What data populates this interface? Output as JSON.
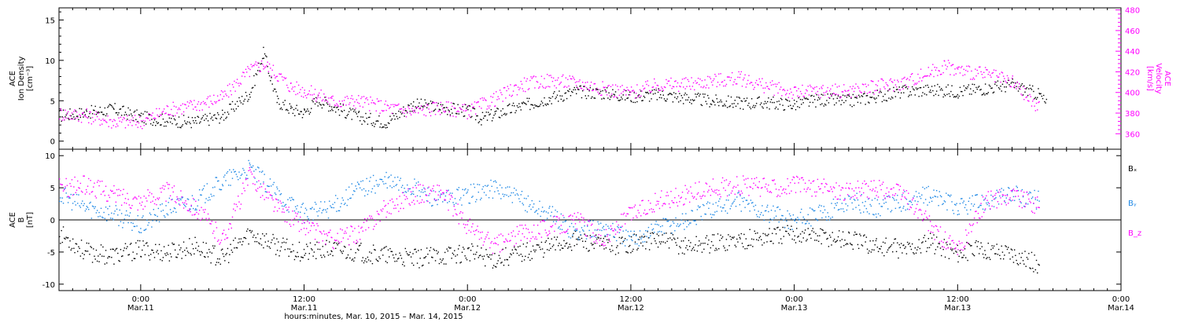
{
  "chart_data": [
    {
      "type": "scatter",
      "panel": "top",
      "ylabel": [
        "ACE",
        "Ion Density",
        "[cm⁻³]"
      ],
      "ylabel_right": [
        "ACE",
        "Velocity",
        "[km/s]"
      ],
      "ylim": [
        -1,
        16.5
      ],
      "yticks": [
        0,
        5,
        10,
        15
      ],
      "ylim_right": [
        345,
        482
      ],
      "yticks_right": [
        360,
        380,
        400,
        420,
        440,
        460,
        480
      ],
      "grid": false,
      "series": [
        {
          "axis": "left",
          "color": "#000000",
          "points": [
            [
              -6,
              3.2
            ],
            [
              -4,
              3.6
            ],
            [
              -2,
              4.0
            ],
            [
              0,
              3.0
            ],
            [
              2,
              2.6
            ],
            [
              4,
              2.4
            ],
            [
              6,
              3.2
            ],
            [
              8,
              6.0
            ],
            [
              9,
              11.0
            ],
            [
              10,
              5.0
            ],
            [
              11,
              4.0
            ],
            [
              12,
              3.6
            ],
            [
              13,
              5.2
            ],
            [
              14,
              4.4
            ],
            [
              16,
              3.0
            ],
            [
              18,
              2.4
            ],
            [
              20,
              4.6
            ],
            [
              22,
              4.2
            ],
            [
              24,
              3.8
            ],
            [
              25,
              2.8
            ],
            [
              26,
              3.4
            ],
            [
              28,
              4.4
            ],
            [
              30,
              5.4
            ],
            [
              32,
              6.2
            ],
            [
              34,
              6.0
            ],
            [
              36,
              5.6
            ],
            [
              38,
              5.8
            ],
            [
              40,
              5.4
            ],
            [
              42,
              5.0
            ],
            [
              44,
              4.8
            ],
            [
              46,
              4.8
            ],
            [
              48,
              4.6
            ],
            [
              50,
              5.2
            ],
            [
              52,
              5.0
            ],
            [
              54,
              5.6
            ],
            [
              56,
              6.2
            ],
            [
              58,
              6.4
            ],
            [
              60,
              6.2
            ],
            [
              62,
              6.6
            ],
            [
              64,
              7.0
            ],
            [
              66,
              5.8
            ],
            [
              66.5,
              4.6
            ]
          ]
        },
        {
          "axis": "right",
          "color": "#ff00ff",
          "points": [
            [
              -6,
              380
            ],
            [
              -4,
              378
            ],
            [
              -2,
              372
            ],
            [
              0,
              372
            ],
            [
              2,
              384
            ],
            [
              4,
              388
            ],
            [
              6,
              396
            ],
            [
              8,
              422
            ],
            [
              9,
              428
            ],
            [
              10,
              418
            ],
            [
              11,
              406
            ],
            [
              12,
              402
            ],
            [
              13,
              398
            ],
            [
              14,
              392
            ],
            [
              16,
              392
            ],
            [
              18,
              386
            ],
            [
              20,
              382
            ],
            [
              22,
              386
            ],
            [
              24,
              382
            ],
            [
              26,
              394
            ],
            [
              28,
              408
            ],
            [
              30,
              412
            ],
            [
              32,
              410
            ],
            [
              34,
              404
            ],
            [
              36,
              400
            ],
            [
              38,
              408
            ],
            [
              40,
              408
            ],
            [
              42,
              412
            ],
            [
              44,
              414
            ],
            [
              46,
              406
            ],
            [
              48,
              400
            ],
            [
              50,
              402
            ],
            [
              52,
              402
            ],
            [
              54,
              406
            ],
            [
              56,
              410
            ],
            [
              58,
              420
            ],
            [
              59,
              426
            ],
            [
              60,
              422
            ],
            [
              62,
              418
            ],
            [
              64,
              410
            ],
            [
              66,
              384
            ]
          ]
        }
      ]
    },
    {
      "type": "scatter",
      "panel": "bottom",
      "ylabel": [
        "ACE",
        "B",
        "[nT]"
      ],
      "ylim": [
        -11,
        11
      ],
      "yticks": [
        -10,
        -5,
        0,
        5,
        10
      ],
      "zero_line": true,
      "grid": false,
      "legend_position": "right",
      "series": [
        {
          "name": "Bₓ",
          "color": "#000000",
          "points": [
            [
              -6,
              -2
            ],
            [
              -4,
              -5
            ],
            [
              -2,
              -5.5
            ],
            [
              0,
              -4.5
            ],
            [
              2,
              -5
            ],
            [
              4,
              -4
            ],
            [
              6,
              -6
            ],
            [
              8,
              -2
            ],
            [
              10,
              -4
            ],
            [
              12,
              -5
            ],
            [
              14,
              -4.5
            ],
            [
              16,
              -5
            ],
            [
              18,
              -5.5
            ],
            [
              20,
              -6
            ],
            [
              24,
              -5
            ],
            [
              26,
              -6
            ],
            [
              28,
              -5
            ],
            [
              30,
              -4
            ],
            [
              32,
              -3
            ],
            [
              34,
              -4
            ],
            [
              36,
              -3.5
            ],
            [
              38,
              -3
            ],
            [
              40,
              -4
            ],
            [
              42,
              -3.5
            ],
            [
              44,
              -3
            ],
            [
              46,
              -2.5
            ],
            [
              48,
              -2
            ],
            [
              50,
              -2.5
            ],
            [
              52,
              -3
            ],
            [
              54,
              -4
            ],
            [
              56,
              -4.5
            ],
            [
              58,
              -3.5
            ],
            [
              60,
              -5
            ],
            [
              62,
              -4.5
            ],
            [
              64,
              -5
            ],
            [
              66,
              -7
            ]
          ]
        },
        {
          "name": "Bᵧ",
          "color": "#1e88e5",
          "points": [
            [
              -6,
              4
            ],
            [
              -4,
              2
            ],
            [
              -2,
              1
            ],
            [
              0,
              -1
            ],
            [
              2,
              2
            ],
            [
              4,
              3
            ],
            [
              6,
              6
            ],
            [
              8,
              8
            ],
            [
              10,
              4
            ],
            [
              12,
              1
            ],
            [
              14,
              2
            ],
            [
              16,
              5
            ],
            [
              18,
              6
            ],
            [
              20,
              5
            ],
            [
              22,
              3
            ],
            [
              24,
              4
            ],
            [
              26,
              5
            ],
            [
              28,
              3
            ],
            [
              30,
              1
            ],
            [
              32,
              -2
            ],
            [
              34,
              -1
            ],
            [
              36,
              -3
            ],
            [
              38,
              -1
            ],
            [
              40,
              0
            ],
            [
              42,
              2
            ],
            [
              44,
              3
            ],
            [
              46,
              1
            ],
            [
              48,
              0
            ],
            [
              50,
              1
            ],
            [
              52,
              3
            ],
            [
              54,
              2
            ],
            [
              56,
              3
            ],
            [
              58,
              4
            ],
            [
              60,
              2
            ],
            [
              62,
              3
            ],
            [
              64,
              4
            ],
            [
              66,
              3
            ]
          ]
        },
        {
          "name": "B_z",
          "color": "#ff00ff",
          "points": [
            [
              -6,
              5
            ],
            [
              -4,
              5.5
            ],
            [
              -2,
              4
            ],
            [
              0,
              3
            ],
            [
              2,
              4.5
            ],
            [
              4,
              2
            ],
            [
              6,
              -3
            ],
            [
              8,
              7
            ],
            [
              10,
              2
            ],
            [
              12,
              -1
            ],
            [
              14,
              -3
            ],
            [
              16,
              -2
            ],
            [
              18,
              2
            ],
            [
              20,
              4
            ],
            [
              22,
              4.5
            ],
            [
              24,
              -1
            ],
            [
              26,
              -4
            ],
            [
              28,
              -2
            ],
            [
              30,
              -1
            ],
            [
              32,
              0
            ],
            [
              34,
              -3
            ],
            [
              36,
              1
            ],
            [
              38,
              3
            ],
            [
              40,
              4
            ],
            [
              42,
              5
            ],
            [
              44,
              5.5
            ],
            [
              46,
              5
            ],
            [
              48,
              5.5
            ],
            [
              50,
              5
            ],
            [
              52,
              4.5
            ],
            [
              54,
              5
            ],
            [
              56,
              4
            ],
            [
              58,
              -1
            ],
            [
              60,
              -5
            ],
            [
              62,
              3
            ],
            [
              64,
              4
            ],
            [
              66,
              2
            ]
          ]
        }
      ]
    }
  ],
  "x_axis": {
    "range_hours": [
      -6,
      72
    ],
    "ticks": [
      {
        "h": 0,
        "time": "0:00",
        "date": "Mar.11"
      },
      {
        "h": 12,
        "time": "12:00",
        "date": "Mar.11"
      },
      {
        "h": 24,
        "time": "0:00",
        "date": "Mar.12"
      },
      {
        "h": 36,
        "time": "12:00",
        "date": "Mar.12"
      },
      {
        "h": 48,
        "time": "0:00",
        "date": "Mar.13"
      },
      {
        "h": 60,
        "time": "12:00",
        "date": "Mar.13"
      },
      {
        "h": 72,
        "time": "0:00",
        "date": "Mar.14"
      }
    ],
    "xlabel": "hours:minutes, Mar. 10, 2015 – Mar. 14, 2015"
  }
}
